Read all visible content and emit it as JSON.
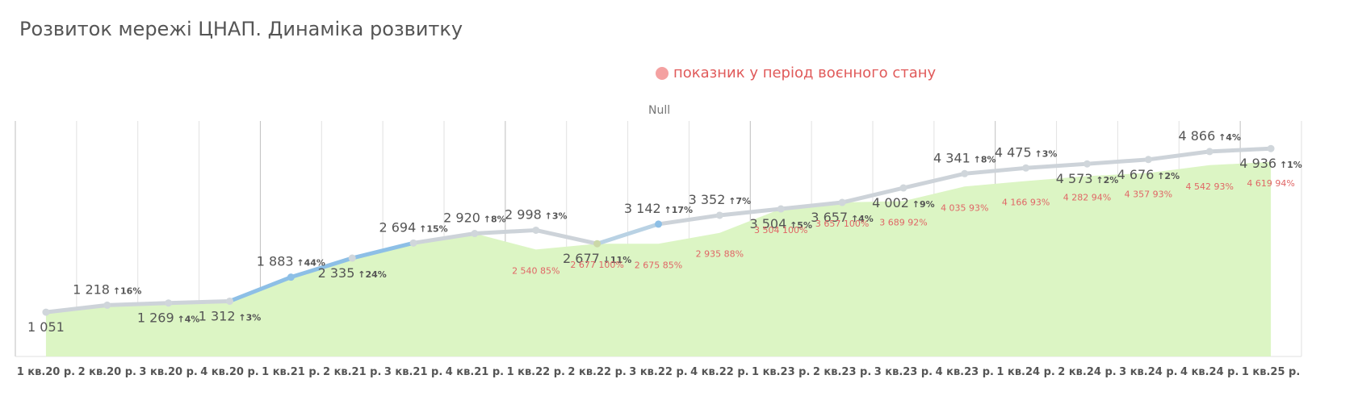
{
  "chart_data": {
    "type": "line",
    "title": "Розвиток мережі ЦНАП. Динаміка розвитку",
    "legend": {
      "label": "показник у період воєнного стану",
      "color": "#f4a1a1",
      "placement": "top-center"
    },
    "subtitle": "Null",
    "categories": [
      "1 кв.20 р.",
      "2 кв.20 р.",
      "3 кв.20 р.",
      "4 кв.20 р.",
      "1 кв.21 р.",
      "2 кв.21 р.",
      "3 кв.21 р.",
      "4 кв.21 р.",
      "1 кв.22 р.",
      "2 кв.22 р.",
      "3 кв.22 р.",
      "4 кв.22 р.",
      "1 кв.23 р.",
      "2 кв.23 р.",
      "3 кв.23 р.",
      "4 кв.23 р.",
      "1 кв.24 р.",
      "2 кв.24 р.",
      "3 кв.24 р.",
      "4 кв.24 р.",
      "1 кв.25 р."
    ],
    "series": [
      {
        "type": "line",
        "values": [
          1051,
          1218,
          1269,
          1312,
          1883,
          2335,
          2694,
          2920,
          2998,
          2677,
          3142,
          3352,
          3504,
          3657,
          4002,
          4341,
          4475,
          4573,
          4676,
          4866,
          4936
        ],
        "labels": [
          "1 051",
          "1 218",
          "1 269",
          "1 312",
          "1 883",
          "2 335",
          "2 694",
          "2 920",
          "2 998",
          "2 677",
          "3 142",
          "3 352",
          "3 504",
          "3 657",
          "4 002",
          "4 341",
          "4 475",
          "4 573",
          "4 676",
          "4 866",
          "4 936"
        ],
        "changes": [
          "",
          "↑16%",
          "↑4%",
          "↑3%",
          "↑44%",
          "↑24%",
          "↑15%",
          "↑8%",
          "↑3%",
          "↓11%",
          "↑17%",
          "↑7%",
          "↑5%",
          "↑4%",
          "↑9%",
          "↑8%",
          "↑3%",
          "↑2%",
          "↑2%",
          "↑4%",
          "↑1%"
        ],
        "color": "#cdd3d9",
        "highlight_color": "#8dbfe6"
      },
      {
        "type": "area",
        "values": [
          1051,
          1218,
          1269,
          1312,
          1883,
          2335,
          2694,
          2920,
          2540,
          2677,
          2675,
          2935,
          3504,
          3657,
          3689,
          4035,
          4166,
          4282,
          4357,
          4542,
          4619
        ],
        "labels": [
          "",
          "",
          "",
          "",
          "",
          "",
          "",
          "",
          "2 540 85%",
          "2 677 100%",
          "2 675 85%",
          "2 935 88%",
          "3 504 100%",
          "3 657 100%",
          "3 689 92%",
          "4 035 93%",
          "4 166 93%",
          "4 282 94%",
          "4 357 93%",
          "4 542 93%",
          "4 619 94%"
        ],
        "color": "#dcf5c4"
      }
    ],
    "ylim": [
      0,
      5400
    ],
    "grid": true
  }
}
